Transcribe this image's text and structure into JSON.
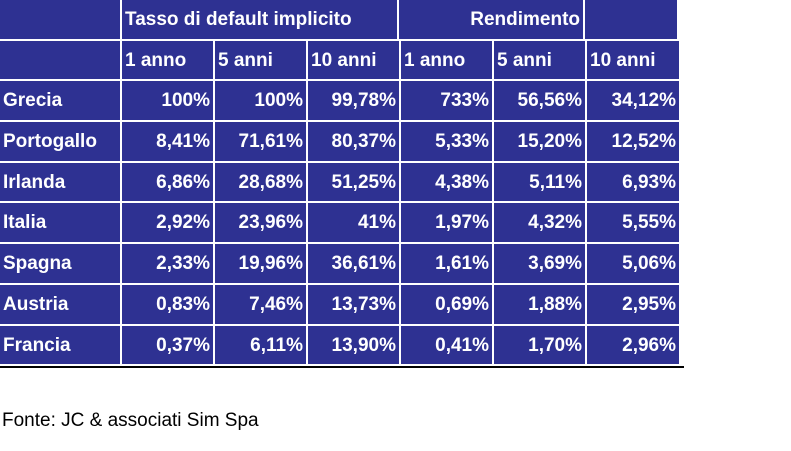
{
  "table": {
    "group_headers": [
      "",
      "Tasso di default implicito",
      "Rendimento",
      ""
    ],
    "sub_headers": [
      "",
      "1 anno",
      "5 anni",
      "10 anni",
      "1 anno",
      "5 anni",
      "10 anni"
    ],
    "rows": [
      {
        "country": "Grecia",
        "values": [
          "100%",
          "100%",
          "99,78%",
          "733%",
          "56,56%",
          "34,12%"
        ]
      },
      {
        "country": "Portogallo",
        "values": [
          "8,41%",
          "71,61%",
          "80,37%",
          "5,33%",
          "15,20%",
          "12,52%"
        ]
      },
      {
        "country": "Irlanda",
        "values": [
          "6,86%",
          "28,68%",
          "51,25%",
          "4,38%",
          "5,11%",
          "6,93%"
        ]
      },
      {
        "country": "Italia",
        "values": [
          "2,92%",
          "23,96%",
          "41%",
          "1,97%",
          "4,32%",
          "5,55%"
        ]
      },
      {
        "country": "Spagna",
        "values": [
          "2,33%",
          "19,96%",
          "36,61%",
          "1,61%",
          "3,69%",
          "5,06%"
        ]
      },
      {
        "country": "Austria",
        "values": [
          "0,83%",
          "7,46%",
          "13,73%",
          "0,69%",
          "1,88%",
          "2,95%"
        ]
      },
      {
        "country": "Francia",
        "values": [
          "0,37%",
          "6,11%",
          "13,90%",
          "0,41%",
          "1,70%",
          "2,96%"
        ]
      }
    ]
  },
  "source": "Fonte: JC & associati Sim Spa",
  "colors": {
    "cell_background": "#2e3192",
    "text": "#ffffff"
  }
}
